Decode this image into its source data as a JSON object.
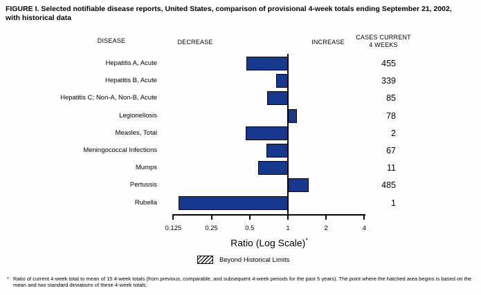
{
  "title": {
    "line1": "FIGURE I. Selected notifiable disease reports, United States, comparison of provisional 4-week totals ending September 21, 2002,",
    "line2": "with historical data"
  },
  "headers": {
    "disease": "DISEASE",
    "decrease": "DECREASE",
    "increase": "INCREASE",
    "cases_line1": "CASES CURRENT",
    "cases_line2": "4 WEEKS"
  },
  "chart_data": {
    "type": "bar",
    "orientation": "horizontal",
    "scale": "log",
    "baseline": 1,
    "xlim": [
      0.125,
      4
    ],
    "axis_ticks": [
      0.125,
      0.25,
      0.5,
      1,
      2,
      4
    ],
    "tick_labels": [
      "0.125",
      "0.25",
      "0.5",
      "1",
      "2",
      "4"
    ],
    "xlabel": "Ratio (Log Scale)",
    "xlabel_marker": "*",
    "bar_color": "#17398d",
    "grid": false,
    "legend_position": "bottom",
    "rows": [
      {
        "disease": "Hepatitis A, Acute",
        "ratio": 0.47,
        "cases": "455",
        "beyond_historical_limits": false
      },
      {
        "disease": "Hepatitis B, Acute",
        "ratio": 0.81,
        "cases": "339",
        "beyond_historical_limits": false
      },
      {
        "disease": "Hepatitis C; Non-A, Non-B, Acute",
        "ratio": 0.69,
        "cases": "85",
        "beyond_historical_limits": false
      },
      {
        "disease": "Legionellosis",
        "ratio": 1.18,
        "cases": "78",
        "beyond_historical_limits": false
      },
      {
        "disease": "Measles, Total",
        "ratio": 0.465,
        "cases": "2",
        "beyond_historical_limits": false
      },
      {
        "disease": "Meningococcal Infections",
        "ratio": 0.68,
        "cases": "67",
        "beyond_historical_limits": false
      },
      {
        "disease": "Mumps",
        "ratio": 0.58,
        "cases": "11",
        "beyond_historical_limits": false
      },
      {
        "disease": "Pertussis",
        "ratio": 1.46,
        "cases": "485",
        "beyond_historical_limits": false
      },
      {
        "disease": "Rubella",
        "ratio": 0.138,
        "cases": "1",
        "beyond_historical_limits": false
      }
    ],
    "legend": {
      "label": "Beyond Historical Limits",
      "swatch": "hatched"
    }
  },
  "footnote": {
    "marker": "*",
    "text": "Ratio of current 4-week total to mean of 15 4-week totals (from previous, comparable, and subsequent 4-week periods for the past 5 years). The point where the hatched area begins is based on the mean and two standard deviations of these 4-week totals."
  }
}
